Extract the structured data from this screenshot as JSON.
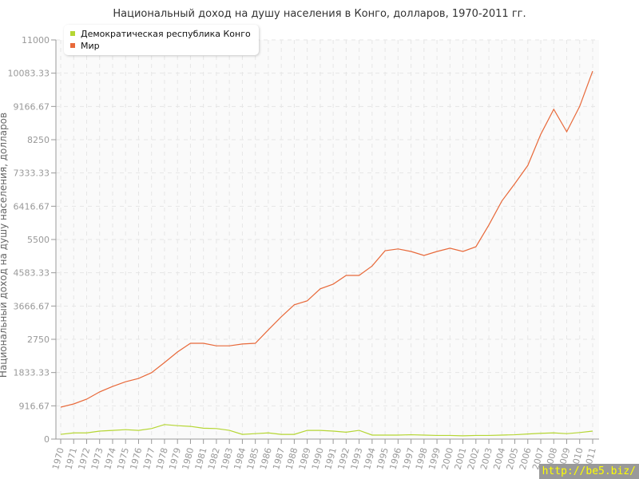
{
  "chart_data": {
    "type": "line",
    "title": "Национальный доход на душу населения в Конго, долларов, 1970-2011 гг.",
    "ylabel": "Национальный доход на душу населения, долларов",
    "ylim": [
      0,
      11000
    ],
    "yticks": [
      "0",
      "916.67",
      "1833.33",
      "2750",
      "3666.67",
      "4583.33",
      "5500",
      "6416.67",
      "7333.33",
      "8250",
      "9166.67",
      "10083.33",
      "11000"
    ],
    "grid": true,
    "legend_position": "top-left",
    "x": [
      1970,
      1971,
      1972,
      1973,
      1974,
      1975,
      1976,
      1977,
      1978,
      1979,
      1980,
      1981,
      1982,
      1983,
      1984,
      1985,
      1986,
      1987,
      1988,
      1989,
      1990,
      1991,
      1992,
      1993,
      1994,
      1995,
      1996,
      1997,
      1998,
      1999,
      2000,
      2001,
      2002,
      2003,
      2004,
      2005,
      2006,
      2007,
      2008,
      2009,
      2010,
      2011
    ],
    "series": [
      {
        "name": "Демократическая республика Конго",
        "color": "#b5d633",
        "values": [
          130,
          170,
          170,
          220,
          240,
          260,
          240,
          290,
          400,
          370,
          350,
          300,
          290,
          240,
          130,
          150,
          170,
          130,
          130,
          240,
          240,
          220,
          190,
          240,
          110,
          110,
          110,
          120,
          110,
          100,
          100,
          90,
          100,
          100,
          110,
          120,
          140,
          160,
          170,
          150,
          180,
          220
        ]
      },
      {
        "name": "Мир",
        "color": "#e8693a",
        "values": [
          880,
          968,
          1100,
          1300,
          1450,
          1580,
          1670,
          1830,
          2110,
          2400,
          2640,
          2640,
          2570,
          2570,
          2620,
          2640,
          3010,
          3370,
          3700,
          3810,
          4140,
          4270,
          4510,
          4510,
          4770,
          5190,
          5240,
          5170,
          5060,
          5170,
          5260,
          5170,
          5300,
          5900,
          6560,
          7040,
          7540,
          8400,
          9090,
          8470,
          9170,
          10140
        ]
      }
    ]
  },
  "watermark": "http://be5.biz/"
}
